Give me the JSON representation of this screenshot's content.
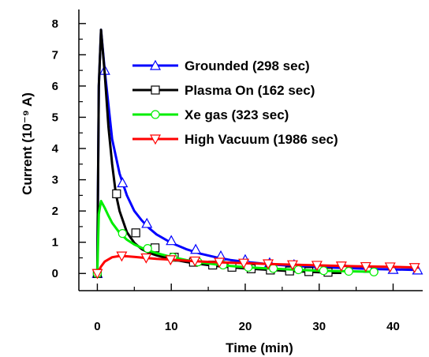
{
  "chart_data": {
    "type": "line",
    "title": "",
    "xlabel": "Time (min)",
    "ylabel": "Current (10⁻⁹ A)",
    "xlim": [
      -2.5,
      44
    ],
    "ylim": [
      -0.55,
      8.45
    ],
    "xticks": [
      0,
      10,
      20,
      30,
      40
    ],
    "yticks": [
      0,
      1,
      2,
      3,
      4,
      5,
      6,
      7,
      8
    ],
    "x_minor_step": 5,
    "y_minor_step": 0.5,
    "grid": false,
    "legend_position": "upper-center",
    "series": [
      {
        "name": "Grounded (298 sec)",
        "color": "#0000ff",
        "marker": "triangle-up",
        "x": [
          0,
          0.2,
          0.5,
          1,
          1.5,
          2,
          3,
          4,
          5,
          6,
          7,
          8,
          10,
          12,
          14,
          16,
          18,
          20,
          23,
          26,
          30,
          34,
          38,
          42,
          43.5
        ],
        "y": [
          0,
          6,
          7.8,
          6.5,
          5.4,
          4.3,
          3.2,
          2.5,
          2.0,
          1.7,
          1.45,
          1.25,
          0.98,
          0.78,
          0.63,
          0.52,
          0.43,
          0.37,
          0.3,
          0.25,
          0.2,
          0.17,
          0.14,
          0.12,
          0.11
        ],
        "marker_x": [
          0,
          1,
          3.4,
          6.7,
          10,
          13.3,
          16.7,
          20,
          23.3,
          26.6,
          30,
          33.4,
          36.7,
          40,
          43.3
        ],
        "marker_y": [
          0,
          6.5,
          2.9,
          1.6,
          1.05,
          0.77,
          0.56,
          0.44,
          0.34,
          0.28,
          0.22,
          0.19,
          0.16,
          0.13,
          0.11
        ]
      },
      {
        "name": "Plasma On (162 sec)",
        "color": "#000000",
        "marker": "square",
        "x": [
          0,
          0.2,
          0.5,
          1,
          1.5,
          2,
          2.5,
          3,
          4,
          5,
          6,
          7,
          8,
          10,
          12,
          14,
          16,
          18,
          20,
          23,
          26,
          29,
          31,
          32,
          33
        ],
        "y": [
          0,
          6,
          7.8,
          6.4,
          4.7,
          3.5,
          2.55,
          2.0,
          1.32,
          0.98,
          0.78,
          0.66,
          0.58,
          0.46,
          0.37,
          0.3,
          0.24,
          0.2,
          0.16,
          0.12,
          0.08,
          0.05,
          0.03,
          0.02,
          0.02
        ],
        "marker_x": [
          0,
          2.6,
          5.2,
          7.8,
          10.4,
          13,
          15.6,
          18.2,
          20.8,
          23.4,
          26,
          28.6,
          31.2
        ],
        "marker_y": [
          0,
          2.55,
          1.3,
          0.82,
          0.52,
          0.36,
          0.27,
          0.2,
          0.15,
          0.11,
          0.08,
          0.06,
          0.04
        ]
      },
      {
        "name": "Xe gas (323 sec)",
        "color": "#00ee00",
        "marker": "circle",
        "x": [
          0,
          0.2,
          0.5,
          1,
          1.5,
          2,
          3,
          4,
          5,
          6,
          7,
          8,
          10,
          12,
          14,
          16,
          18,
          20,
          23,
          26,
          30,
          34,
          36,
          38
        ],
        "y": [
          0,
          1.9,
          2.32,
          2.1,
          1.85,
          1.62,
          1.3,
          1.08,
          0.93,
          0.82,
          0.73,
          0.65,
          0.53,
          0.43,
          0.35,
          0.29,
          0.24,
          0.2,
          0.16,
          0.13,
          0.09,
          0.07,
          0.06,
          0.05
        ],
        "marker_x": [
          0,
          3.4,
          6.8,
          10.2,
          13.6,
          17,
          20.4,
          23.8,
          27.2,
          30.6,
          34,
          37.4
        ],
        "marker_y": [
          0,
          1.28,
          0.8,
          0.52,
          0.37,
          0.27,
          0.2,
          0.16,
          0.12,
          0.09,
          0.07,
          0.05
        ]
      },
      {
        "name": "High Vacuum (1986 sec)",
        "color": "#ff0000",
        "marker": "triangle-down",
        "x": [
          0,
          0.5,
          1,
          2,
          3,
          4,
          5,
          6,
          8,
          10,
          12,
          15,
          20,
          25,
          30,
          35,
          40,
          43.5
        ],
        "y": [
          0,
          0.22,
          0.38,
          0.52,
          0.56,
          0.55,
          0.53,
          0.51,
          0.47,
          0.44,
          0.41,
          0.37,
          0.33,
          0.29,
          0.26,
          0.23,
          0.21,
          0.19
        ],
        "marker_x": [
          0,
          3.3,
          6.6,
          9.9,
          13.2,
          16.5,
          19.8,
          23.1,
          26.4,
          29.7,
          33,
          36.3,
          39.6,
          42.9
        ],
        "marker_y": [
          0,
          0.56,
          0.5,
          0.44,
          0.4,
          0.36,
          0.33,
          0.31,
          0.28,
          0.26,
          0.24,
          0.22,
          0.21,
          0.19
        ]
      }
    ]
  }
}
